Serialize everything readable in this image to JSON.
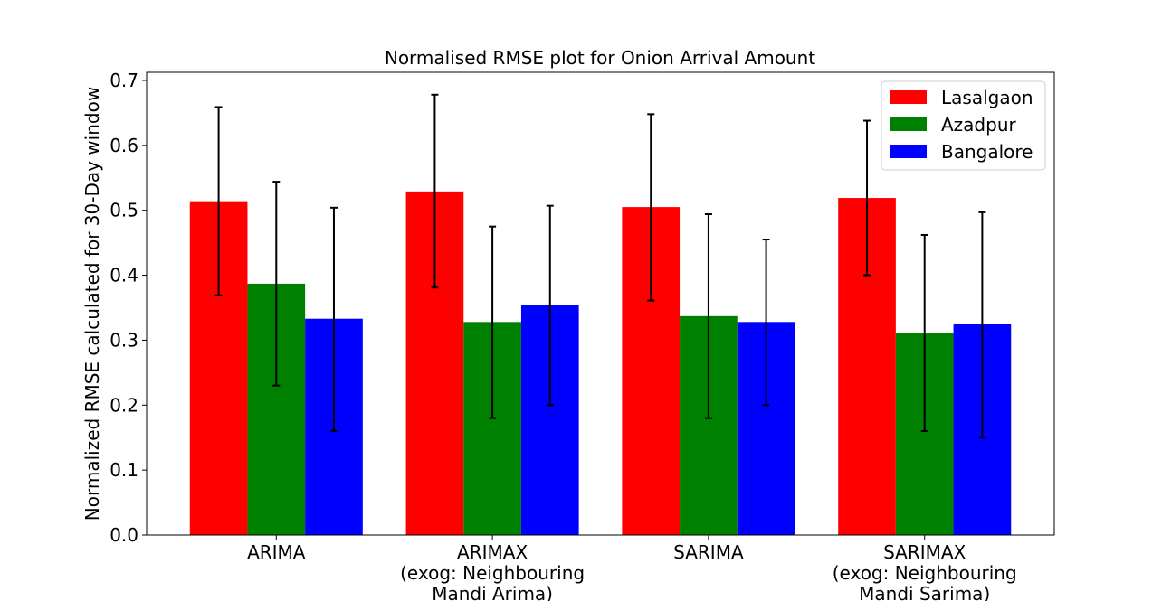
{
  "chart_data": {
    "type": "bar",
    "title": "Normalised RMSE plot for Onion Arrival Amount",
    "xlabel": "",
    "ylabel": "Normalized RMSE calculated for 30-Day window",
    "ylim": [
      0,
      0.7125
    ],
    "yticks": [
      "0.0",
      "0.1",
      "0.2",
      "0.3",
      "0.4",
      "0.5",
      "0.6",
      "0.7"
    ],
    "categories": [
      [
        "ARIMA"
      ],
      [
        "ARIMAX",
        "(exog: Neighbouring",
        "Mandi Arima)"
      ],
      [
        "SARIMA"
      ],
      [
        "SARIMAX",
        "(exog: Neighbouring",
        "Mandi Sarima)"
      ]
    ],
    "legend_position": "top-right",
    "grid": false,
    "series": [
      {
        "name": "Lasalgaon",
        "color": "#ff0000",
        "values": [
          0.514,
          0.529,
          0.505,
          0.519
        ],
        "error_low": [
          0.369,
          0.381,
          0.361,
          0.4
        ],
        "error_high": [
          0.659,
          0.678,
          0.648,
          0.638
        ]
      },
      {
        "name": "Azadpur",
        "color": "#008000",
        "values": [
          0.387,
          0.328,
          0.337,
          0.311
        ],
        "error_low": [
          0.23,
          0.18,
          0.18,
          0.16
        ],
        "error_high": [
          0.544,
          0.475,
          0.494,
          0.462
        ]
      },
      {
        "name": "Bangalore",
        "color": "#0000ff",
        "values": [
          0.333,
          0.354,
          0.328,
          0.325
        ],
        "error_low": [
          0.16,
          0.2,
          0.2,
          0.15
        ],
        "error_high": [
          0.504,
          0.507,
          0.455,
          0.497
        ]
      }
    ]
  }
}
